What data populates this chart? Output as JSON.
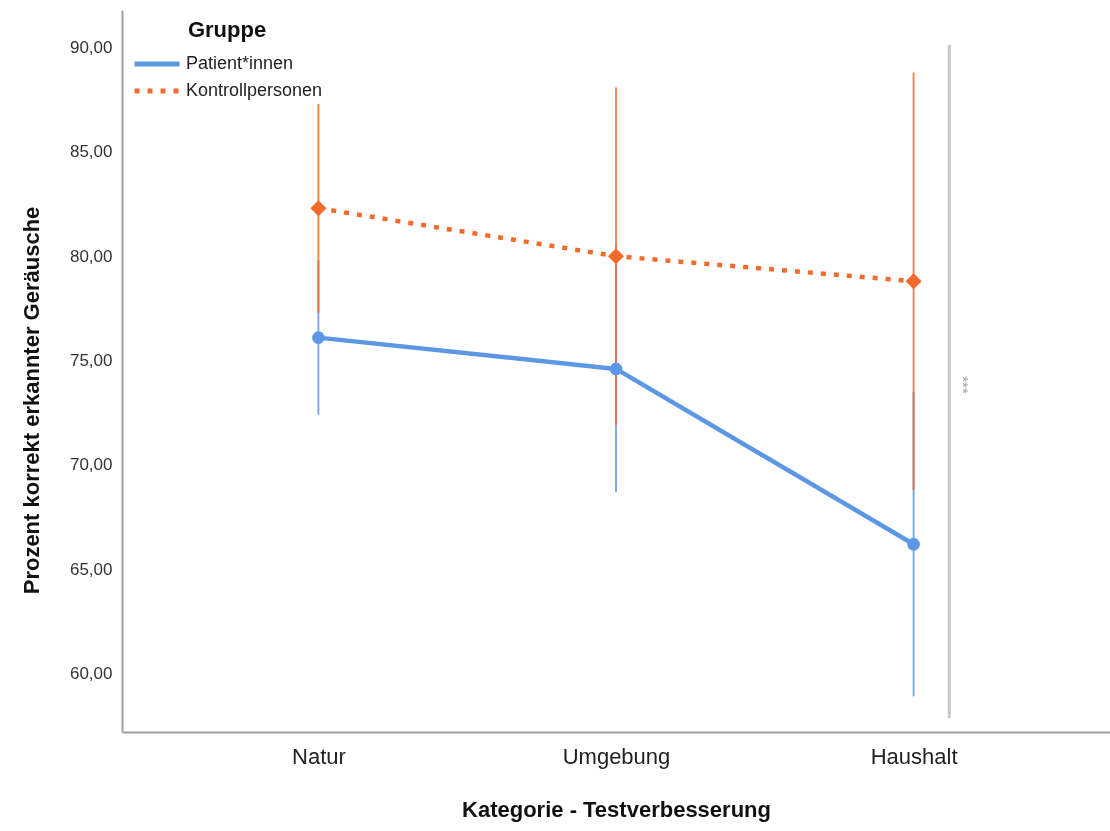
{
  "chart_data": {
    "type": "line",
    "xlabel": "Kategorie - Testverbesserung",
    "ylabel": "Prozent korrekt erkannter Geräusche",
    "legend_title": "Gruppe",
    "legend": "top left",
    "categories": [
      "Natur",
      "Umgebung",
      "Haushalt"
    ],
    "series": [
      {
        "name": "Patient*innen",
        "color": "#5b97e5",
        "values": [
          76.1,
          74.6,
          66.2
        ],
        "errors": [
          3.7,
          5.9,
          7.3
        ],
        "marker": "circle",
        "line_style": "solid"
      },
      {
        "name": "Kontrollpersonen",
        "color": "#f26b2c",
        "values": [
          82.3,
          80.0,
          78.8
        ],
        "errors": [
          5.0,
          8.1,
          10.0
        ],
        "marker": "diamond",
        "line_style": "dotted"
      }
    ],
    "ylim": [
      57.2,
      91.8
    ],
    "yticks": [
      {
        "value": 60,
        "label": "60,00"
      },
      {
        "value": 65,
        "label": "65,00"
      },
      {
        "value": 70,
        "label": "70,00"
      },
      {
        "value": 75,
        "label": "75,00"
      },
      {
        "value": 80,
        "label": "80,00"
      },
      {
        "value": 85,
        "label": "85,00"
      },
      {
        "value": 90,
        "label": "90,00"
      }
    ],
    "annotations": [
      "***"
    ]
  }
}
